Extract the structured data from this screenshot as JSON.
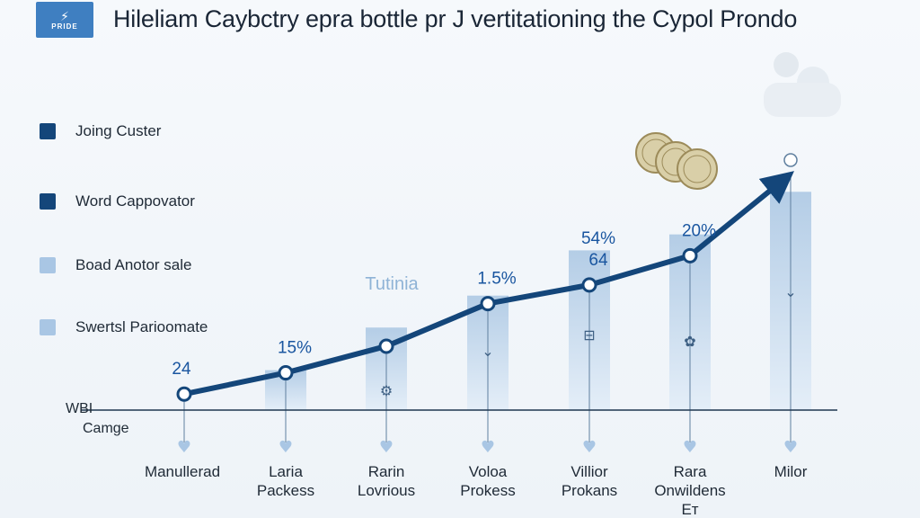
{
  "logo": {
    "icon": "lightning-bolt-icon",
    "text": "PRIDE"
  },
  "chart_data": {
    "type": "bar",
    "title": "Hileliam Caybctry epra bottle pr J vertitationing the Cypol Prondo",
    "categories": [
      [
        "Manullerad"
      ],
      [
        "Laria",
        "Packess"
      ],
      [
        "Rarin",
        "Lovrious"
      ],
      [
        "Voloa",
        "Prokess"
      ],
      [
        "Villior",
        "Prokans"
      ],
      [
        "Rara",
        "Onwildens",
        "E⁣ᴛ"
      ],
      [
        "Milor"
      ]
    ],
    "bar_values": [
      0,
      15,
      31,
      43,
      60,
      66,
      82
    ],
    "line_values": [
      6,
      14,
      24,
      40,
      47,
      58,
      88
    ],
    "point_labels": [
      "24",
      "15%",
      "",
      "1.5%",
      "54%\n64",
      "20%",
      ""
    ],
    "series": [
      {
        "name": "Joing Custer",
        "color": "#14467a"
      },
      {
        "name": "Word Cappovator",
        "color": "#14467a"
      },
      {
        "name": "Boad Anotor sale",
        "color": "#a9c6e4"
      },
      {
        "name": "Swertsl Parioomate",
        "color": "#a9c6e4"
      }
    ],
    "annotation": "Tutinia",
    "axis_label_lines": [
      "WBI",
      "Camge"
    ],
    "ylim": [
      0,
      100
    ],
    "colors": {
      "line": "#14467a",
      "bar_top": "#b4cde6",
      "bar_bottom": "#e4eef8",
      "accent": "#1a56a0"
    }
  }
}
